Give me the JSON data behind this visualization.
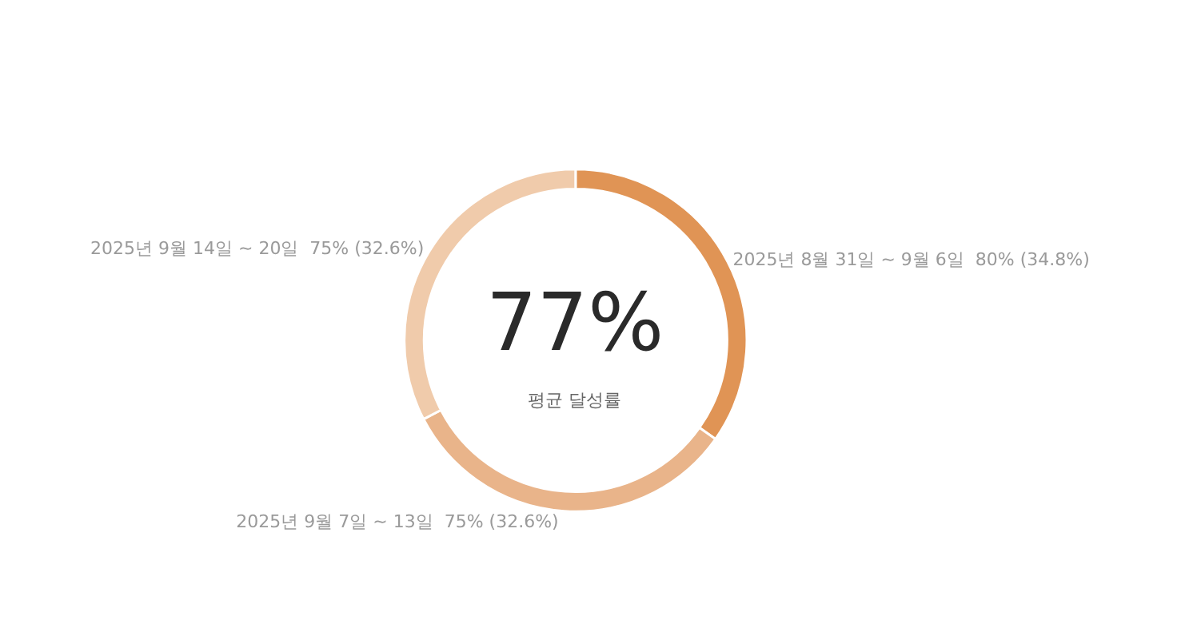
{
  "chart_data": {
    "type": "donut",
    "categories": [
      "2025년 8월 31일 ~ 9월 6일",
      "2025년 9월 7일 ~ 13일",
      "2025년 9월 14일 ~ 20일"
    ],
    "values": [
      80,
      75,
      75
    ],
    "value_labels": [
      "80% (34.8%)",
      "75% (32.6%)",
      "75% (32.6%)"
    ],
    "colors": [
      "#e09455",
      "#e9b48a",
      "#f0cbab"
    ],
    "annotations": [
      "77%",
      "평균 달성률"
    ],
    "legend": false
  }
}
